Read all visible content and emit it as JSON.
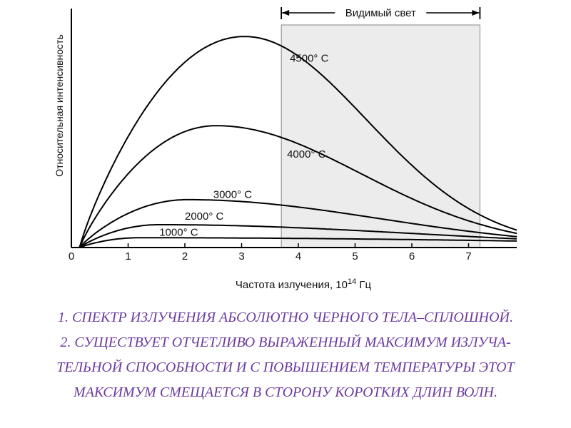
{
  "chart_data": {
    "type": "line",
    "ylabel": "Относительная интенсивность",
    "xlabel_prefix": "Частота излучения, 10",
    "xlabel_sup": "14",
    "xlabel_suffix": " Гц",
    "xlim": [
      0,
      7.85
    ],
    "ylim": [
      0,
      1
    ],
    "xticks": [
      0,
      1,
      2,
      3,
      4,
      5,
      6,
      7
    ],
    "visible_band": {
      "label": "Видимый свет",
      "from": 3.7,
      "to": 7.2
    },
    "series": [
      {
        "name": "4500° C",
        "peak_x": 3.05,
        "peak_y": 0.97,
        "end_y": 0.08,
        "label_pos": [
          3.85,
          0.87
        ]
      },
      {
        "name": "4000° C",
        "peak_x": 2.55,
        "peak_y": 0.56,
        "end_y": 0.065,
        "label_pos": [
          3.8,
          0.43
        ]
      },
      {
        "name": "3000° C",
        "peak_x": 2.05,
        "peak_y": 0.22,
        "end_y": 0.05,
        "label_pos": [
          2.5,
          0.245
        ]
      },
      {
        "name": "2000° C",
        "peak_x": 1.55,
        "peak_y": 0.105,
        "end_y": 0.04,
        "label_pos": [
          2.0,
          0.145
        ]
      },
      {
        "name": "1000° C",
        "peak_x": 1.2,
        "peak_y": 0.045,
        "end_y": 0.03,
        "label_pos": [
          1.55,
          0.07
        ]
      }
    ]
  },
  "notes": [
    "1. СПЕКТР ИЗЛУЧЕНИЯ АБСОЛЮТНО ЧЕРНОГО ТЕЛА–СПЛОШНОЙ.",
    "2. СУЩЕСТВУЕТ ОТЧЕТЛИВО ВЫРАЖЕННЫЙ МАКСИМУМ ИЗЛУЧА-",
    "ТЕЛЬНОЙ СПОСОБНОСТИ И С ПОВЫШЕНИЕМ ТЕМПЕРАТУРЫ ЭТОТ",
    "МАКСИМУМ СМЕЩАЕТСЯ В СТОРОНУ КОРОТКИХ  ДЛИН ВОЛН."
  ]
}
